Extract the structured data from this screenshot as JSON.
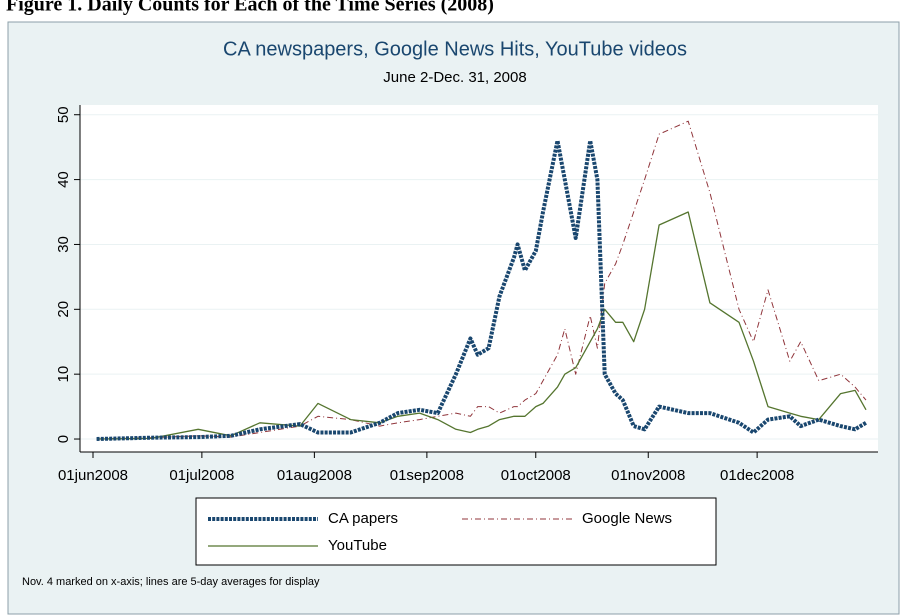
{
  "caption": "Figure 1. Daily Counts for Each of the Time Series (2008)",
  "chart_data": {
    "type": "line",
    "title": "CA newspapers, Google News Hits, YouTube videos",
    "subtitle": "June 2-Dec. 31, 2008",
    "note": "Nov. 4 marked on x-axis; lines are 5-day averages for display",
    "x": [
      "2008-06-02",
      "2008-06-17",
      "2008-06-30",
      "2008-07-09",
      "2008-07-17",
      "2008-07-28",
      "2008-08-02",
      "2008-08-11",
      "2008-08-19",
      "2008-08-24",
      "2008-08-30",
      "2008-09-04",
      "2008-09-09",
      "2008-09-13",
      "2008-09-15",
      "2008-09-18",
      "2008-09-21",
      "2008-09-25",
      "2008-09-26",
      "2008-09-28",
      "2008-10-01",
      "2008-10-03",
      "2008-10-07",
      "2008-10-09",
      "2008-10-12",
      "2008-10-16",
      "2008-10-18",
      "2008-10-20",
      "2008-10-23",
      "2008-10-25",
      "2008-10-28",
      "2008-10-31",
      "2008-11-04",
      "2008-11-12",
      "2008-11-18",
      "2008-11-26",
      "2008-11-30",
      "2008-12-04",
      "2008-12-10",
      "2008-12-13",
      "2008-12-18",
      "2008-12-24",
      "2008-12-28",
      "2008-12-31"
    ],
    "series": [
      {
        "name": "CA papers",
        "color": "#1a476f",
        "style": "dotted-thick",
        "values": [
          0,
          0.2,
          0.3,
          0.5,
          1.5,
          2.3,
          1,
          1,
          2.5,
          4,
          4.5,
          4,
          10,
          15.5,
          13,
          14,
          22,
          28,
          30,
          26,
          29,
          35,
          46,
          40,
          31,
          46,
          40,
          10,
          7,
          6,
          2,
          1.5,
          5,
          4,
          4,
          2.5,
          1,
          3,
          3.5,
          2,
          3,
          2,
          1.5,
          2.5
        ]
      },
      {
        "name": "Google News",
        "color": "#90353b",
        "style": "dash-dot",
        "values": [
          0,
          0.2,
          0.5,
          0.3,
          1,
          2,
          3.5,
          3,
          2,
          2.5,
          3,
          3.5,
          4,
          3.5,
          5,
          5,
          4,
          5,
          5,
          6,
          7,
          9,
          13,
          17,
          10,
          19,
          14,
          24,
          27,
          30,
          35,
          40,
          47,
          49,
          38,
          20,
          15,
          23,
          12,
          15,
          9,
          10,
          8,
          6
        ]
      },
      {
        "name": "YouTube",
        "color": "#55752f",
        "style": "solid",
        "values": [
          0,
          0.1,
          1.5,
          0.5,
          2.5,
          2,
          5.5,
          3,
          2.5,
          3.5,
          4,
          3,
          1.5,
          1,
          1.5,
          2,
          3,
          3.5,
          3.5,
          3.5,
          5,
          5.5,
          8,
          10,
          11,
          15,
          17,
          20,
          18,
          18,
          15,
          20,
          33,
          35,
          21,
          18,
          12,
          5,
          4,
          3.5,
          3,
          7,
          7.5,
          4.5
        ]
      }
    ],
    "xlim": [
      "2008-06-01",
      "2008-12-31"
    ],
    "xticks": [
      {
        "value": "2008-06-01",
        "label": "01jun2008"
      },
      {
        "value": "2008-07-01",
        "label": "01jul2008"
      },
      {
        "value": "2008-08-01",
        "label": "01aug2008"
      },
      {
        "value": "2008-09-01",
        "label": "01sep2008"
      },
      {
        "value": "2008-10-01",
        "label": "01oct2008"
      },
      {
        "value": "2008-11-01",
        "label": "01nov2008"
      },
      {
        "value": "2008-12-01",
        "label": "01dec2008"
      }
    ],
    "ylim": [
      -2,
      51.5
    ],
    "yticks": [
      0,
      10,
      20,
      30,
      40,
      50
    ],
    "grid": true,
    "legend": "bottom"
  }
}
